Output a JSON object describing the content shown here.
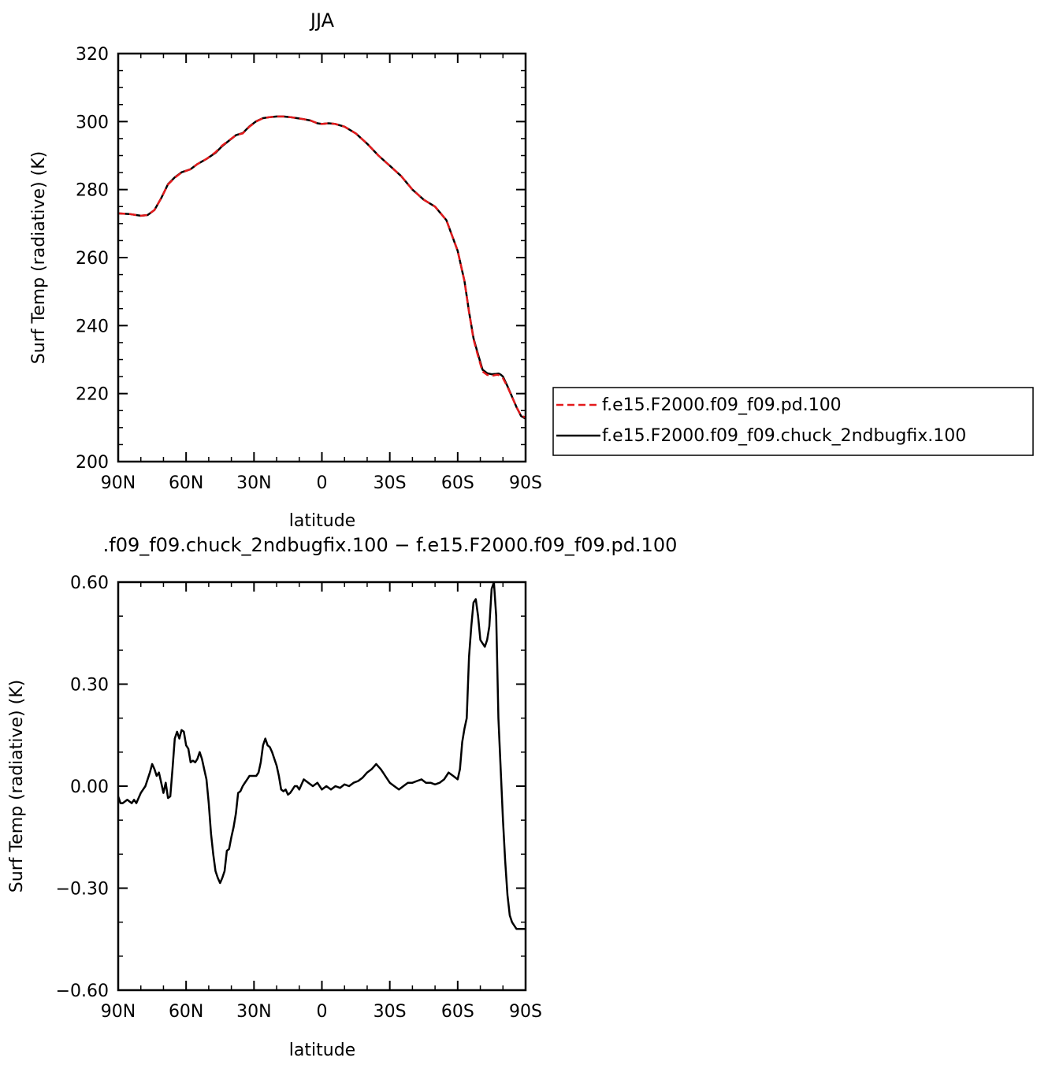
{
  "chart_data": [
    {
      "type": "line",
      "title": "JJA",
      "xlabel": "latitude",
      "ylabel": "Surf Temp (radiative) (K)",
      "xlim": [
        90,
        -90
      ],
      "ylim": [
        200,
        320
      ],
      "xticks": [
        90,
        60,
        30,
        0,
        -30,
        -60,
        -90
      ],
      "xticklabels": [
        "90N",
        "60N",
        "30N",
        "0",
        "30S",
        "60S",
        "90S"
      ],
      "yticks": [
        200,
        220,
        240,
        260,
        280,
        300,
        320
      ],
      "yticklabels": [
        "200",
        "220",
        "240",
        "260",
        "280",
        "300",
        "320"
      ],
      "grid": false,
      "legend": "right",
      "series": [
        {
          "name": "f.e15.F2000.f09_f09.pd.100",
          "color": "#e41a1c",
          "style": "dashed",
          "x": [
            90,
            85,
            80,
            77,
            74,
            71,
            68,
            65,
            62,
            58,
            55,
            51,
            47,
            44,
            41,
            38,
            35,
            32,
            29,
            26,
            23,
            20,
            17,
            14,
            11,
            8,
            5,
            2,
            0,
            -3,
            -6,
            -10,
            -15,
            -20,
            -25,
            -30,
            -35,
            -40,
            -45,
            -50,
            -55,
            -60,
            -63,
            -65,
            -67,
            -69,
            -71,
            -73,
            -75,
            -77,
            -78,
            -79,
            -80,
            -82,
            -84,
            -86,
            -88,
            -90
          ],
          "values": [
            273,
            272.8,
            272.3,
            272.5,
            274,
            277.5,
            281.5,
            283.5,
            285,
            286,
            287.5,
            289,
            291,
            293,
            294.5,
            296,
            296.5,
            298.5,
            300,
            301,
            301.3,
            301.5,
            301.5,
            301.3,
            301,
            300.7,
            300.3,
            299.5,
            299.3,
            299.5,
            299.3,
            298.5,
            296.5,
            293.5,
            290,
            287,
            284,
            280,
            277,
            275,
            271,
            262,
            253,
            244,
            236,
            231,
            226.5,
            225.5,
            225.2,
            225.5,
            225.5,
            225,
            224.5,
            222,
            219,
            216,
            213.5,
            213
          ]
        },
        {
          "name": "f.e15.F2000.f09_f09.chuck_2ndbugfix.100",
          "color": "#000000",
          "style": "solid",
          "x": [
            90,
            85,
            80,
            77,
            74,
            71,
            68,
            65,
            62,
            58,
            55,
            51,
            47,
            44,
            41,
            38,
            35,
            32,
            29,
            26,
            23,
            20,
            17,
            14,
            11,
            8,
            5,
            2,
            0,
            -3,
            -6,
            -10,
            -15,
            -20,
            -25,
            -30,
            -35,
            -40,
            -45,
            -50,
            -55,
            -60,
            -63,
            -65,
            -67,
            -69,
            -71,
            -73,
            -75,
            -77,
            -78,
            -79,
            -80,
            -82,
            -84,
            -86,
            -88,
            -90
          ],
          "values": [
            273,
            272.8,
            272.3,
            272.5,
            274,
            277.5,
            281.6,
            283.6,
            285.1,
            286,
            287.5,
            289,
            290.8,
            292.8,
            294.4,
            296,
            296.6,
            298.6,
            300.1,
            301,
            301.3,
            301.5,
            301.5,
            301.3,
            301,
            300.7,
            300.3,
            299.5,
            299.3,
            299.5,
            299.3,
            298.5,
            296.5,
            293.5,
            290,
            287,
            284,
            280,
            277,
            275,
            271,
            262,
            253,
            244.1,
            236.3,
            231.5,
            227,
            226,
            225.7,
            225.8,
            225.9,
            225.6,
            225,
            222.2,
            219.1,
            216,
            213.4,
            212.6
          ]
        }
      ]
    },
    {
      "type": "line",
      "title": ".f09_f09.chuck_2ndbugfix.100 - f.e15.F2000.f09_f09.pd.100",
      "xlabel": "latitude",
      "ylabel": "Surf Temp (radiative) (K)",
      "xlim": [
        90,
        -90
      ],
      "ylim": [
        -0.6,
        0.6
      ],
      "xticks": [
        90,
        60,
        30,
        0,
        -30,
        -60,
        -90
      ],
      "xticklabels": [
        "90N",
        "60N",
        "30N",
        "0",
        "30S",
        "60S",
        "90S"
      ],
      "yticks": [
        -0.6,
        -0.3,
        0,
        0.3,
        0.6
      ],
      "yticklabels": [
        "-0.60",
        "-0.30",
        "0.00",
        "0.30",
        "0.60"
      ],
      "grid": false,
      "series": [
        {
          "color": "#000000",
          "style": "solid",
          "x": [
            90,
            89,
            88,
            86,
            84,
            83,
            82,
            80,
            79,
            78,
            76,
            75,
            74,
            73,
            72,
            71,
            70,
            69,
            68,
            67,
            66,
            65,
            64,
            63,
            62,
            61,
            60,
            59,
            58,
            57,
            56,
            55,
            54,
            53,
            52,
            51,
            50,
            49,
            48,
            47,
            46,
            45,
            44,
            43,
            42,
            41,
            40,
            39,
            38,
            37,
            36,
            35,
            34,
            33,
            32,
            31,
            30,
            29,
            28,
            27,
            26,
            25,
            24,
            23,
            22,
            21,
            20,
            19,
            18,
            17,
            16,
            15,
            14,
            13,
            12,
            11,
            10,
            8,
            6,
            4,
            2,
            0,
            -2,
            -4,
            -6,
            -8,
            -10,
            -12,
            -14,
            -16,
            -18,
            -20,
            -22,
            -24,
            -26,
            -27,
            -28,
            -30,
            -32,
            -34,
            -36,
            -38,
            -40,
            -42,
            -44,
            -46,
            -48,
            -50,
            -52,
            -54,
            -56,
            -58,
            -60,
            -61,
            -62,
            -63,
            -64,
            -65,
            -66,
            -67,
            -68,
            -69,
            -70,
            -71,
            -72,
            -73,
            -74,
            -75,
            -76,
            -77,
            -78,
            -79,
            -80,
            -81,
            -82,
            -83,
            -84,
            -85,
            -86,
            -87,
            -88,
            -89,
            -90
          ],
          "values": [
            -0.03,
            -0.05,
            -0.05,
            -0.04,
            -0.05,
            -0.04,
            -0.05,
            -0.02,
            -0.01,
            0,
            0.04,
            0.065,
            0.05,
            0.03,
            0.04,
            0.01,
            -0.02,
            0.01,
            -0.035,
            -0.03,
            0.05,
            0.14,
            0.16,
            0.14,
            0.165,
            0.16,
            0.12,
            0.11,
            0.07,
            0.075,
            0.07,
            0.08,
            0.1,
            0.08,
            0.05,
            0.02,
            -0.05,
            -0.14,
            -0.2,
            -0.25,
            -0.27,
            -0.285,
            -0.27,
            -0.25,
            -0.19,
            -0.185,
            -0.15,
            -0.12,
            -0.08,
            -0.02,
            -0.015,
            0,
            0.01,
            0.02,
            0.03,
            0.03,
            0.03,
            0.03,
            0.04,
            0.07,
            0.12,
            0.14,
            0.12,
            0.115,
            0.1,
            0.08,
            0.06,
            0.03,
            -0.01,
            -0.015,
            -0.01,
            -0.025,
            -0.02,
            -0.01,
            0,
            0,
            -0.01,
            0.02,
            0.01,
            0,
            0.01,
            -0.01,
            0,
            -0.01,
            0,
            -0.005,
            0.005,
            0,
            0.01,
            0.015,
            0.025,
            0.04,
            0.05,
            0.065,
            0.05,
            0.04,
            0.03,
            0.01,
            0,
            -0.01,
            0,
            0.01,
            0.01,
            0.015,
            0.02,
            0.01,
            0.01,
            0.005,
            0.01,
            0.02,
            0.04,
            0.03,
            0.02,
            0.05,
            0.13,
            0.17,
            0.2,
            0.38,
            0.47,
            0.54,
            0.55,
            0.5,
            0.43,
            0.42,
            0.41,
            0.43,
            0.47,
            0.58,
            0.6,
            0.5,
            0.2,
            0.05,
            -0.1,
            -0.22,
            -0.32,
            -0.38,
            -0.4,
            -0.41,
            -0.42,
            -0.42,
            -0.42,
            -0.42,
            -0.42
          ]
        }
      ]
    }
  ]
}
